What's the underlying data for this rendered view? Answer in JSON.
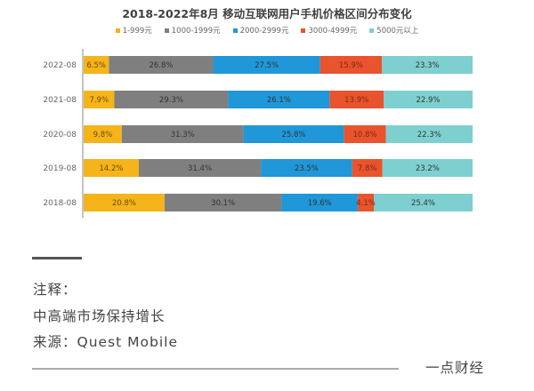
{
  "chart_data": {
    "type": "bar",
    "orientation": "horizontal",
    "stacked": true,
    "title": "2018-2022年8月 移动互联网用户手机价格区间分布变化",
    "categories": [
      "2022-08",
      "2021-08",
      "2020-08",
      "2019-08",
      "2018-08"
    ],
    "series": [
      {
        "name": "1-999元",
        "color": "#f5b41a",
        "values": [
          6.5,
          7.9,
          9.8,
          14.2,
          20.8
        ],
        "labels": [
          "6.5%",
          "7.9%",
          "9.8%",
          "14.2%",
          "20.8%"
        ]
      },
      {
        "name": "1000-1999元",
        "color": "#7f7f7f",
        "values": [
          26.8,
          29.3,
          31.3,
          31.4,
          30.1
        ],
        "labels": [
          "26.8%",
          "29.3%",
          "31.3%",
          "31.4%",
          "30.1%"
        ]
      },
      {
        "name": "2000-2999元",
        "color": "#1f97d8",
        "values": [
          27.5,
          26.1,
          25.8,
          23.5,
          19.6
        ],
        "labels": [
          "27.5%",
          "26.1%",
          "25.8%",
          "23.5%",
          "19.6%"
        ]
      },
      {
        "name": "3000-4999元",
        "color": "#e9532d",
        "values": [
          15.9,
          13.9,
          10.8,
          7.8,
          4.1
        ],
        "labels": [
          "15.9%",
          "13.9%",
          "10.8%",
          "7.8%",
          "4.1%"
        ]
      },
      {
        "name": "5000元以上",
        "color": "#7dd0cf",
        "values": [
          23.3,
          22.9,
          22.3,
          23.2,
          25.4
        ],
        "labels": [
          "23.3%",
          "22.9%",
          "22.3%",
          "23.2%",
          "25.4%"
        ]
      }
    ],
    "xlim": [
      0,
      100
    ],
    "xlabel": "",
    "ylabel": "",
    "grid": false,
    "legend_position": "top-center"
  },
  "notes": {
    "label": "注释：",
    "text": "中高端市场保持增长",
    "source": "来源：Quest Mobile"
  },
  "brand": "一点财经"
}
